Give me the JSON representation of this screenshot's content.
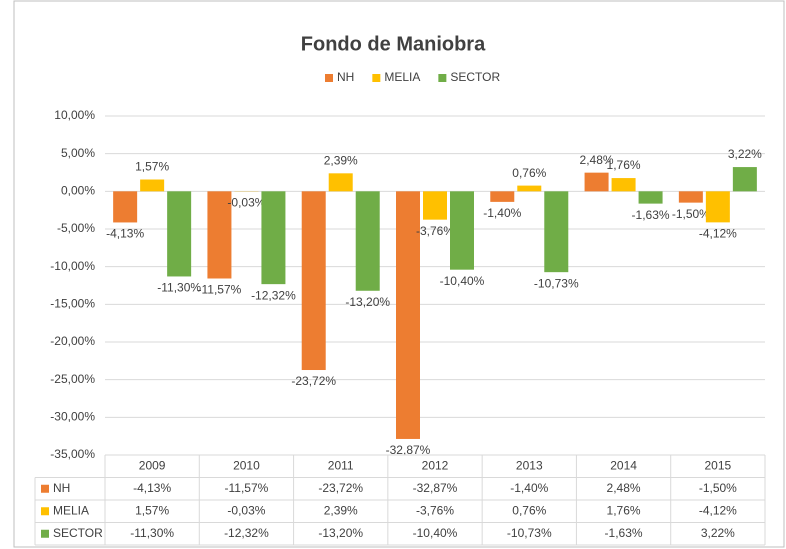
{
  "chart_data": {
    "type": "bar",
    "title": "Fondo de Maniobra",
    "categories": [
      "2009",
      "2010",
      "2011",
      "2012",
      "2013",
      "2014",
      "2015"
    ],
    "series": [
      {
        "name": "NH",
        "color": "#ed7d31",
        "values": [
          -4.13,
          -11.57,
          -23.72,
          -32.87,
          -1.4,
          2.48,
          -1.5
        ],
        "value_labels": [
          "-4,13%",
          "-11,57%",
          "-23,72%",
          "-32,87%",
          "-1,40%",
          "2,48%",
          "-1,50%"
        ]
      },
      {
        "name": "MELIA",
        "color": "#ffc000",
        "values": [
          1.57,
          -0.03,
          2.39,
          -3.76,
          0.76,
          1.76,
          -4.12
        ],
        "value_labels": [
          "1,57%",
          "-0,03%",
          "2,39%",
          "-3,76%",
          "0,76%",
          "1,76%",
          "-4,12%"
        ]
      },
      {
        "name": "SECTOR",
        "color": "#70ad47",
        "values": [
          -11.3,
          -12.32,
          -13.2,
          -10.4,
          -10.73,
          -1.63,
          3.22
        ],
        "value_labels": [
          "-11,30%",
          "-12,32%",
          "-13,20%",
          "-10,40%",
          "-10,73%",
          "-1,63%",
          "3,22%"
        ]
      }
    ],
    "ylim": [
      -35,
      10
    ],
    "yticks": [
      {
        "value": -35,
        "label": "-35,00%"
      },
      {
        "value": -30,
        "label": "-30,00%"
      },
      {
        "value": -25,
        "label": "-25,00%"
      },
      {
        "value": -20,
        "label": "-20,00%"
      },
      {
        "value": -15,
        "label": "-15,00%"
      },
      {
        "value": -10,
        "label": "-10,00%"
      },
      {
        "value": -5,
        "label": "-5,00%"
      },
      {
        "value": 0,
        "label": "0,00%"
      },
      {
        "value": 5,
        "label": "5,00%"
      },
      {
        "value": 10,
        "label": "10,00%"
      }
    ],
    "grid": true,
    "legend": "top",
    "data_table": true
  }
}
